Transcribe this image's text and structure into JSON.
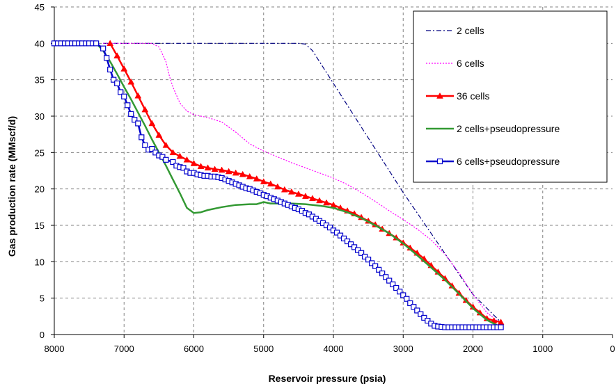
{
  "chart_data": {
    "type": "line",
    "title": "",
    "xlabel": "Reservoir pressure (psia)",
    "ylabel": "Gas production rate (MMscf/d)",
    "xlim": [
      8000,
      0
    ],
    "ylim": [
      0,
      45
    ],
    "x_reversed": true,
    "x_ticks": [
      8000,
      7000,
      6000,
      5000,
      4000,
      3000,
      2000,
      1000,
      0
    ],
    "y_ticks": [
      0,
      5,
      10,
      15,
      20,
      25,
      30,
      35,
      40,
      45
    ],
    "grid": "dashed",
    "legend_position": "top-right",
    "series": [
      {
        "name": "2 cells",
        "color": "#000080",
        "style": "dash-dot",
        "marker": "none",
        "x": [
          7300,
          6500,
          5500,
          4500,
          4400,
          4300,
          4000,
          3500,
          3000,
          2500,
          2000,
          1600
        ],
        "y": [
          40,
          40,
          40,
          40,
          39.9,
          39,
          34.5,
          27,
          19.5,
          12.5,
          5.5,
          1.7
        ]
      },
      {
        "name": "6 cells",
        "color": "#ff00ff",
        "style": "dotted",
        "marker": "none",
        "x": [
          7300,
          6600,
          6500,
          6400,
          6350,
          6300,
          6200,
          6100,
          6000,
          5800,
          5600,
          5400,
          5200,
          5000,
          4800,
          4600,
          4400,
          4200,
          4000,
          3800,
          3600,
          3400,
          3200,
          3000,
          2800,
          2600,
          2400,
          2200,
          2000,
          1800,
          1600
        ],
        "y": [
          40,
          40,
          39.5,
          37.5,
          35.5,
          34,
          31.8,
          30.7,
          30.2,
          29.8,
          29.2,
          27.8,
          26.2,
          25.2,
          24.4,
          23.6,
          22.9,
          22.2,
          21.5,
          20.6,
          19.5,
          18.3,
          17,
          15.8,
          14.5,
          13,
          11,
          8.5,
          5.5,
          3,
          1.5
        ]
      },
      {
        "name": "36 cells",
        "color": "#ff0000",
        "style": "solid",
        "marker": "triangle",
        "x": [
          7200,
          7100,
          7000,
          6900,
          6800,
          6700,
          6600,
          6500,
          6400,
          6300,
          6200,
          6100,
          6000,
          5900,
          5800,
          5700,
          5600,
          5500,
          5400,
          5300,
          5200,
          5100,
          5000,
          4900,
          4800,
          4700,
          4600,
          4500,
          4400,
          4300,
          4200,
          4100,
          4000,
          3900,
          3800,
          3700,
          3600,
          3500,
          3400,
          3300,
          3200,
          3100,
          3000,
          2900,
          2800,
          2700,
          2600,
          2500,
          2400,
          2300,
          2200,
          2100,
          2000,
          1900,
          1800,
          1700,
          1600
        ],
        "y": [
          40,
          38.3,
          36.5,
          34.7,
          32.8,
          30.9,
          29,
          27.4,
          26,
          25,
          24.5,
          24,
          23.5,
          23.1,
          22.9,
          22.7,
          22.6,
          22.4,
          22.2,
          22,
          21.7,
          21.4,
          21,
          20.7,
          20.3,
          19.9,
          19.6,
          19.3,
          19,
          18.7,
          18.4,
          18.1,
          17.8,
          17.4,
          17,
          16.6,
          16.1,
          15.6,
          15.1,
          14.5,
          13.9,
          13.3,
          12.6,
          11.9,
          11.2,
          10.4,
          9.5,
          8.6,
          7.7,
          6.7,
          5.7,
          4.7,
          3.8,
          3,
          2.2,
          1.9,
          1.7
        ]
      },
      {
        "name": "2 cells+pseudopressure",
        "color": "#339933",
        "style": "solid",
        "marker": "none",
        "x": [
          7400,
          7300,
          7200,
          7100,
          7000,
          6900,
          6800,
          6700,
          6600,
          6500,
          6400,
          6300,
          6200,
          6100,
          6000,
          5900,
          5800,
          5600,
          5400,
          5200,
          5100,
          5000,
          4900,
          4800,
          4600,
          4400,
          4200,
          4000,
          3800,
          3600,
          3400,
          3200,
          3000,
          2800,
          2600,
          2400,
          2200,
          2000,
          1800,
          1600
        ],
        "y": [
          40,
          39,
          37.5,
          35.8,
          34,
          32.3,
          30.5,
          28.7,
          26.8,
          25,
          23.2,
          21.3,
          19.4,
          17.4,
          16.7,
          16.8,
          17.1,
          17.5,
          17.8,
          17.9,
          17.9,
          18.2,
          18,
          18,
          18,
          17.9,
          17.7,
          17.4,
          16.8,
          16,
          15,
          13.9,
          12.5,
          10.9,
          9.2,
          7.5,
          5.6,
          3.6,
          2,
          1
        ]
      },
      {
        "name": "6 cells+pseudopressure",
        "color": "#0000cc",
        "style": "solid",
        "marker": "square",
        "x": [
          8000,
          7950,
          7900,
          7850,
          7800,
          7750,
          7700,
          7650,
          7600,
          7550,
          7500,
          7450,
          7400,
          7300,
          7250,
          7200,
          7150,
          7100,
          7050,
          7000,
          6950,
          6900,
          6850,
          6800,
          6750,
          6700,
          6650,
          6600,
          6550,
          6500,
          6450,
          6400,
          6300,
          6250,
          6200,
          6150,
          6100,
          6050,
          6000,
          5950,
          5900,
          5850,
          5800,
          5750,
          5700,
          5650,
          5600,
          5550,
          5500,
          5450,
          5400,
          5350,
          5300,
          5250,
          5200,
          5150,
          5100,
          5050,
          5000,
          4950,
          4900,
          4850,
          4800,
          4750,
          4700,
          4650,
          4600,
          4550,
          4500,
          4450,
          4400,
          4350,
          4300,
          4250,
          4200,
          4150,
          4100,
          4050,
          4000,
          3950,
          3900,
          3850,
          3800,
          3750,
          3700,
          3650,
          3600,
          3550,
          3500,
          3450,
          3400,
          3350,
          3300,
          3250,
          3200,
          3150,
          3100,
          3050,
          3000,
          2950,
          2900,
          2850,
          2800,
          2750,
          2700,
          2650,
          2600,
          2550,
          2500,
          2450,
          2400,
          2350,
          2300,
          2250,
          2200,
          2150,
          2100,
          2050,
          2000,
          1950,
          1900,
          1850,
          1800,
          1750,
          1700,
          1650,
          1600
        ],
        "y": [
          40,
          40,
          40,
          40,
          40,
          40,
          40,
          40,
          40,
          40,
          40,
          40,
          40,
          39.3,
          38,
          36.4,
          35,
          34.5,
          33.3,
          32.7,
          31.5,
          30.3,
          29.5,
          29,
          27.1,
          26,
          25.4,
          25.5,
          25,
          24.6,
          24.4,
          24,
          23.7,
          23.2,
          23,
          22.9,
          22.4,
          22.2,
          22.2,
          22,
          21.9,
          21.8,
          21.8,
          21.7,
          21.7,
          21.6,
          21.5,
          21.3,
          21.1,
          20.9,
          20.7,
          20.5,
          20.3,
          20.1,
          20,
          19.8,
          19.6,
          19.4,
          19.2,
          19,
          18.8,
          18.6,
          18.4,
          18.2,
          18,
          17.8,
          17.6,
          17.4,
          17.2,
          17,
          16.7,
          16.5,
          16.2,
          15.9,
          15.6,
          15.3,
          15,
          14.7,
          14.3,
          14,
          13.6,
          13.2,
          12.8,
          12.4,
          12,
          11.6,
          11.2,
          10.7,
          10.3,
          9.8,
          9.4,
          8.9,
          8.4,
          7.9,
          7.4,
          6.9,
          6.4,
          5.9,
          5.4,
          4.9,
          4.3,
          3.8,
          3.3,
          2.8,
          2.3,
          1.9,
          1.5,
          1.2,
          1.1,
          1.05,
          1,
          1,
          1,
          1,
          1,
          1,
          1,
          1,
          1,
          1,
          1,
          1,
          1,
          1,
          1,
          1,
          1
        ]
      }
    ]
  }
}
